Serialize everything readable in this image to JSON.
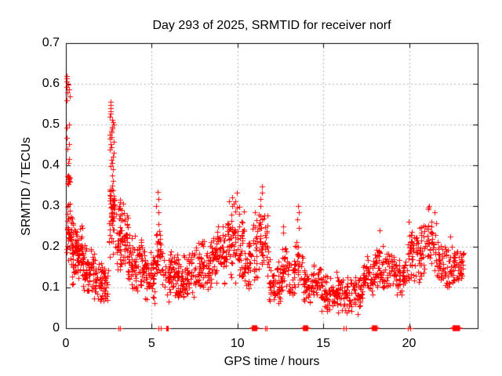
{
  "chart_data": {
    "type": "scatter",
    "title": "Day 293 of 2025, SRMTID for receiver norf",
    "xlabel": "GPS time / hours",
    "ylabel": "SRMTID / TECUs",
    "xlim": [
      0,
      24
    ],
    "ylim": [
      0,
      0.7
    ],
    "xticks": [
      {
        "v": 0,
        "label": "0"
      },
      {
        "v": 5,
        "label": "5"
      },
      {
        "v": 10,
        "label": "10"
      },
      {
        "v": 15,
        "label": "15"
      },
      {
        "v": 20,
        "label": "20"
      }
    ],
    "yticks": [
      {
        "v": 0.0,
        "label": "0"
      },
      {
        "v": 0.1,
        "label": "0.1"
      },
      {
        "v": 0.2,
        "label": "0.2"
      },
      {
        "v": 0.3,
        "label": "0.3"
      },
      {
        "v": 0.4,
        "label": "0.4"
      },
      {
        "v": 0.5,
        "label": "0.5"
      },
      {
        "v": 0.6,
        "label": "0.6"
      },
      {
        "v": 0.7,
        "label": "0.7"
      }
    ],
    "grid": true,
    "legend": "none",
    "marker": "plus",
    "colors": {
      "marker": "#ff0000",
      "grid": "#b4b4b4",
      "axis": "#000000",
      "background": "#ffffff"
    },
    "seed": 293,
    "band_format": "x_start_hour, x_end_hour, point_count, y_min_TECU, y_max_TECU",
    "scatter_bands": [
      [
        0.05,
        0.35,
        40,
        0.15,
        0.33
      ],
      [
        0.08,
        0.32,
        10,
        0.345,
        0.39
      ],
      [
        0.35,
        1.0,
        85,
        0.1,
        0.27
      ],
      [
        1.0,
        1.8,
        75,
        0.07,
        0.21
      ],
      [
        1.8,
        2.45,
        55,
        0.055,
        0.17
      ],
      [
        2.5,
        2.85,
        50,
        0.17,
        0.4
      ],
      [
        2.9,
        3.6,
        70,
        0.13,
        0.32
      ],
      [
        3.6,
        4.6,
        85,
        0.065,
        0.24
      ],
      [
        4.6,
        5.2,
        50,
        0.06,
        0.19
      ],
      [
        5.2,
        5.6,
        32,
        0.09,
        0.27
      ],
      [
        5.6,
        6.6,
        80,
        0.06,
        0.2
      ],
      [
        6.6,
        7.6,
        70,
        0.07,
        0.19
      ],
      [
        7.6,
        8.6,
        75,
        0.08,
        0.235
      ],
      [
        8.6,
        9.4,
        65,
        0.1,
        0.27
      ],
      [
        9.4,
        10.4,
        85,
        0.1,
        0.315
      ],
      [
        10.4,
        10.8,
        35,
        0.08,
        0.22
      ],
      [
        10.8,
        11.8,
        70,
        0.1,
        0.315
      ],
      [
        11.8,
        12.6,
        60,
        0.05,
        0.18
      ],
      [
        12.6,
        13.4,
        60,
        0.07,
        0.21
      ],
      [
        13.4,
        13.8,
        22,
        0.08,
        0.24
      ],
      [
        13.8,
        14.9,
        75,
        0.05,
        0.16
      ],
      [
        14.9,
        16.1,
        85,
        0.03,
        0.14
      ],
      [
        16.1,
        17.3,
        75,
        0.03,
        0.13
      ],
      [
        17.3,
        18.0,
        50,
        0.08,
        0.18
      ],
      [
        18.0,
        19.2,
        80,
        0.09,
        0.21
      ],
      [
        19.2,
        19.9,
        45,
        0.07,
        0.18
      ],
      [
        19.9,
        21.0,
        80,
        0.1,
        0.27
      ],
      [
        21.0,
        21.6,
        40,
        0.13,
        0.295
      ],
      [
        21.6,
        22.6,
        70,
        0.08,
        0.23
      ],
      [
        22.6,
        23.2,
        40,
        0.1,
        0.21
      ]
    ],
    "scatter_columns": [
      {
        "x": 0.12,
        "jitter": 0.1,
        "ys": [
          0.62,
          0.613,
          0.605,
          0.598,
          0.592,
          0.586,
          0.578,
          0.57,
          0.56,
          0.5,
          0.493,
          0.468,
          0.452,
          0.44,
          0.415,
          0.405
        ]
      },
      {
        "x": 2.68,
        "jitter": 0.12,
        "ys": [
          0.555,
          0.548,
          0.54,
          0.533,
          0.527,
          0.52,
          0.512,
          0.505,
          0.5,
          0.495,
          0.49,
          0.485,
          0.48,
          0.475,
          0.47,
          0.465,
          0.458,
          0.452,
          0.445,
          0.438,
          0.43,
          0.422,
          0.413,
          0.405,
          0.398,
          0.39,
          0.375,
          0.362,
          0.35,
          0.34
        ]
      },
      {
        "x": 3.25,
        "jitter": 0.15,
        "ys": [
          0.315,
          0.31,
          0.305,
          0.3,
          0.295,
          0.29
        ]
      },
      {
        "x": 5.35,
        "jitter": 0.08,
        "ys": [
          0.335,
          0.318,
          0.3,
          0.285
        ]
      },
      {
        "x": 9.9,
        "jitter": 0.25,
        "ys": [
          0.332,
          0.322,
          0.312,
          0.305,
          0.298
        ]
      },
      {
        "x": 11.35,
        "jitter": 0.12,
        "ys": [
          0.348,
          0.332,
          0.318,
          0.3
        ]
      },
      {
        "x": 12.7,
        "jitter": 0.1,
        "ys": [
          0.25,
          0.235
        ]
      },
      {
        "x": 13.6,
        "jitter": 0.1,
        "ys": [
          0.3,
          0.285,
          0.267,
          0.247
        ]
      },
      {
        "x": 18.3,
        "jitter": 0.03,
        "ys": [
          0.24
        ]
      },
      {
        "x": 21.15,
        "jitter": 0.07,
        "ys": [
          0.3,
          0.297,
          0.293
        ]
      }
    ],
    "baseline_clusters": [
      {
        "x": 3.1,
        "n": 2,
        "w": 0.12
      },
      {
        "x": 5.45,
        "n": 2,
        "w": 0.14
      },
      {
        "x": 5.9,
        "n": 3,
        "w": 0.1
      },
      {
        "x": 11.0,
        "n": 14,
        "w": 0.28
      },
      {
        "x": 11.65,
        "n": 2,
        "w": 0.12
      },
      {
        "x": 13.97,
        "n": 12,
        "w": 0.26
      },
      {
        "x": 16.25,
        "n": 2,
        "w": 0.15
      },
      {
        "x": 18.0,
        "n": 12,
        "w": 0.28
      },
      {
        "x": 20.0,
        "n": 2,
        "w": 0.1
      },
      {
        "x": 22.75,
        "n": 20,
        "w": 0.4
      }
    ]
  }
}
